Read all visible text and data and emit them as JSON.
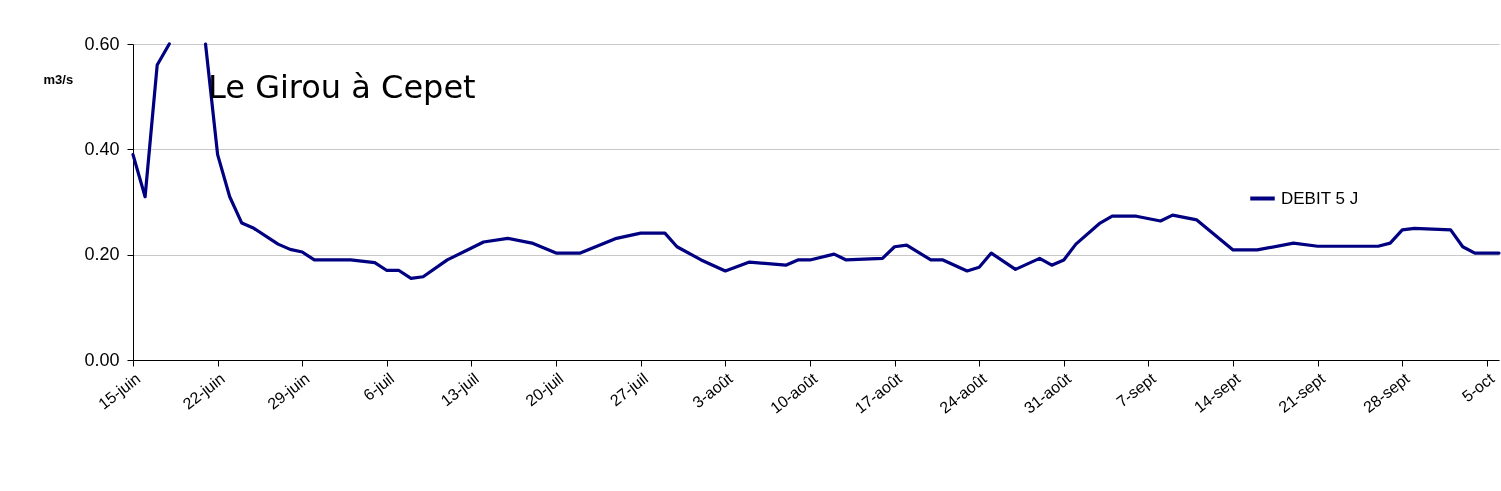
{
  "chart_data": {
    "type": "line",
    "title": "Le Girou à Cepet",
    "ylabel": "m3/s",
    "x": [
      "--06-15",
      "--06-16",
      "--06-17",
      "--06-18",
      "--06-19",
      "--06-21",
      "--06-22",
      "--06-23",
      "--06-24",
      "--06-25",
      "--06-27",
      "--06-28",
      "--06-29",
      "--06-30",
      "--07-03",
      "--07-05",
      "--07-06",
      "--07-07",
      "--07-08",
      "--07-09",
      "--07-11",
      "--07-14",
      "--07-16",
      "--07-18",
      "--07-20",
      "--07-22",
      "--07-25",
      "--07-27",
      "--07-29",
      "--07-30",
      "--08-01",
      "--08-03",
      "--08-05",
      "--08-08",
      "--08-09",
      "--08-10",
      "--08-12",
      "--08-13",
      "--08-16",
      "--08-17",
      "--08-18",
      "--08-20",
      "--08-21",
      "--08-23",
      "--08-24",
      "--08-25",
      "--08-27",
      "--08-29",
      "--08-30",
      "--08-31",
      "--09-01",
      "--09-03",
      "--09-04",
      "--09-06",
      "--09-08",
      "--09-09",
      "--09-11",
      "--09-14",
      "--09-16",
      "--09-19",
      "--09-21",
      "--09-26",
      "--09-27",
      "--09-28",
      "--09-29",
      "--10-02",
      "--10-03",
      "--10-04",
      "--10-06"
    ],
    "series": [
      {
        "name": "DEBIT 5 J",
        "color": "#000080",
        "values": [
          0.39,
          0.31,
          0.56,
          0.6,
          null,
          0.6,
          0.39,
          0.31,
          0.26,
          0.25,
          0.22,
          0.21,
          0.205,
          0.19,
          0.19,
          0.185,
          0.17,
          0.17,
          0.155,
          0.158,
          0.19,
          0.224,
          0.231,
          0.222,
          0.203,
          0.203,
          0.231,
          0.241,
          0.241,
          0.215,
          0.19,
          0.169,
          0.186,
          0.18,
          0.19,
          0.19,
          0.201,
          0.19,
          0.193,
          0.215,
          0.218,
          0.19,
          0.19,
          0.169,
          0.176,
          0.203,
          0.172,
          0.193,
          0.18,
          0.19,
          0.22,
          0.26,
          0.273,
          0.273,
          0.264,
          0.275,
          0.266,
          0.209,
          0.209,
          0.222,
          0.216,
          0.216,
          0.222,
          0.247,
          0.25,
          0.247,
          0.215,
          0.203,
          0.203
        ]
      }
    ],
    "xlim": [
      "--06-15",
      "--10-06"
    ],
    "xticks": [
      {
        "value": "--06-15",
        "label": "15-juin"
      },
      {
        "value": "--06-22",
        "label": "22-juin"
      },
      {
        "value": "--06-29",
        "label": "29-juin"
      },
      {
        "value": "--07-06",
        "label": "6-juil"
      },
      {
        "value": "--07-13",
        "label": "13-juil"
      },
      {
        "value": "--07-20",
        "label": "20-juil"
      },
      {
        "value": "--07-27",
        "label": "27-juil"
      },
      {
        "value": "--08-03",
        "label": "3-août"
      },
      {
        "value": "--08-10",
        "label": "10-août"
      },
      {
        "value": "--08-17",
        "label": "17-août"
      },
      {
        "value": "--08-24",
        "label": "24-août"
      },
      {
        "value": "--08-31",
        "label": "31-août"
      },
      {
        "value": "--09-07",
        "label": "7-sept"
      },
      {
        "value": "--09-14",
        "label": "14-sept"
      },
      {
        "value": "--09-21",
        "label": "21-sept"
      },
      {
        "value": "--09-28",
        "label": "28-sept"
      },
      {
        "value": "--10-05",
        "label": "5-oct"
      }
    ],
    "ylim": [
      0,
      0.6
    ],
    "yticks": [
      {
        "value": 0,
        "label": "0.00"
      },
      {
        "value": 0.2,
        "label": "0.20"
      },
      {
        "value": 0.4,
        "label": "0.40"
      },
      {
        "value": 0.6,
        "label": "0.60"
      }
    ],
    "grid": "y",
    "legend": "top right",
    "marker": "none",
    "line_style": "solid"
  }
}
